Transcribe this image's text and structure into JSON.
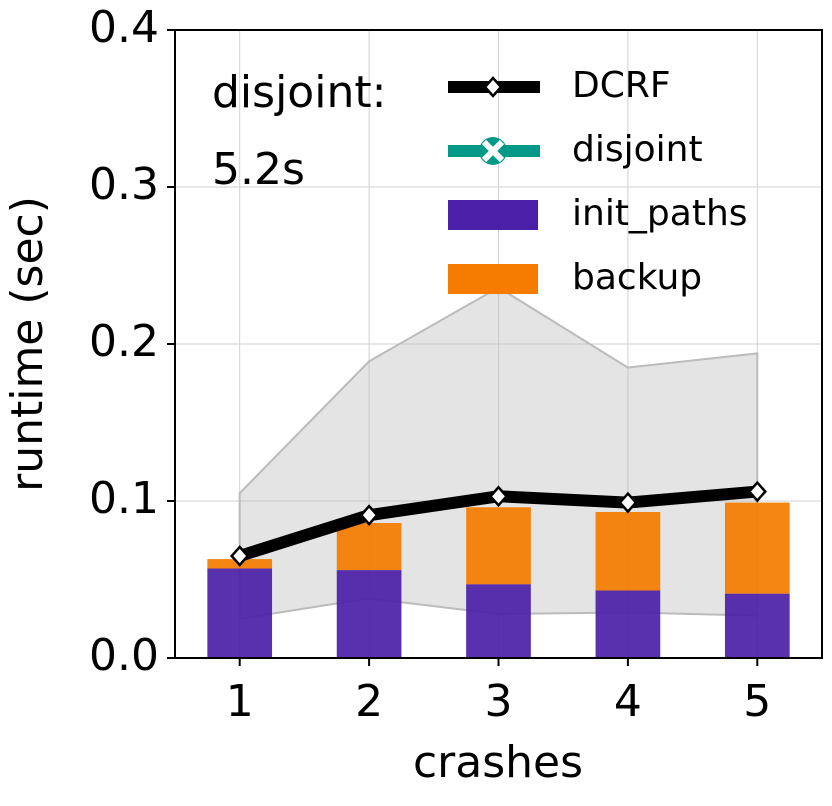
{
  "chart_data": {
    "type": "bar",
    "stacked": true,
    "x_label": "crashes",
    "y_label": "runtime (sec)",
    "x": [
      1,
      2,
      3,
      4,
      5
    ],
    "xlim": [
      0.5,
      5.5
    ],
    "xticks": [
      1,
      2,
      3,
      4,
      5
    ],
    "ylim": [
      0,
      0.4
    ],
    "yticks": [
      {
        "value": 0,
        "label": "0.0"
      },
      0.1,
      0.2,
      0.3,
      0.4
    ],
    "grid": true,
    "annotations": [
      "disjoint:",
      "5.2s"
    ],
    "band": {
      "lower": [
        0.025,
        0.038,
        0.028,
        0.029,
        0.027
      ],
      "upper": [
        0.105,
        0.189,
        0.236,
        0.185,
        0.194
      ],
      "color": "#bbbbbb"
    },
    "series": [
      {
        "name": "DCRF",
        "kind": "line",
        "color": "#000000",
        "values": [
          0.065,
          0.091,
          0.103,
          0.099,
          0.106
        ]
      },
      {
        "name": "disjoint",
        "kind": "line",
        "color": "#009988"
      },
      {
        "name": "init_paths",
        "kind": "bar",
        "color": "#4b1fa8",
        "values": [
          0.057,
          0.056,
          0.047,
          0.043,
          0.041
        ]
      },
      {
        "name": "backup",
        "kind": "bar",
        "color": "#f57c00",
        "values": [
          0.006,
          0.03,
          0.049,
          0.05,
          0.058
        ]
      }
    ]
  }
}
